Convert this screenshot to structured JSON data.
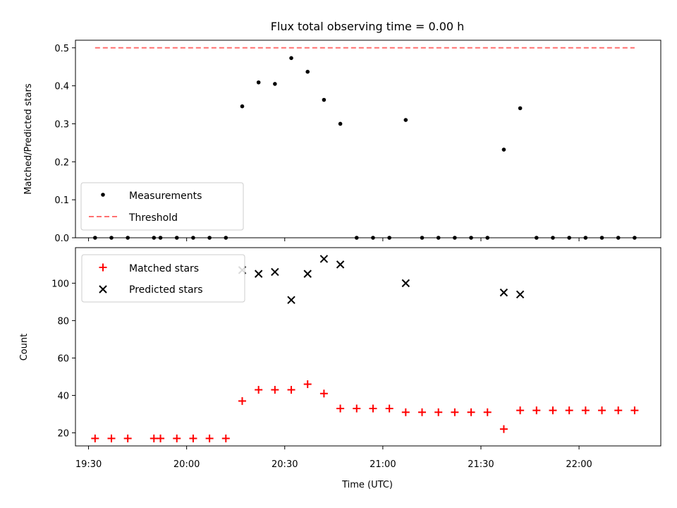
{
  "chart_data": [
    {
      "type": "scatter",
      "title": "Flux total observing time = 0.00 h",
      "xlabel": "",
      "ylabel": "Matched/Predicted stars",
      "xlim": [
        "19:26",
        "22:25"
      ],
      "ylim": [
        0,
        0.52
      ],
      "yticks": [
        0.0,
        0.1,
        0.2,
        0.3,
        0.4,
        0.5
      ],
      "ytick_labels": [
        "0.0",
        "0.1",
        "0.2",
        "0.3",
        "0.4",
        "0.5"
      ],
      "legend": {
        "position": "lower-left",
        "entries": [
          "Measurements",
          "Threshold"
        ]
      },
      "series": [
        {
          "name": "Measurements",
          "marker": "dot",
          "color": "#000000",
          "x": [
            "19:32",
            "19:37",
            "19:42",
            "19:50",
            "19:52",
            "19:57",
            "20:02",
            "20:07",
            "20:12",
            "20:17",
            "20:22",
            "20:27",
            "20:32",
            "20:37",
            "20:42",
            "20:47",
            "20:52",
            "20:57",
            "21:02",
            "21:07",
            "21:12",
            "21:17",
            "21:22",
            "21:27",
            "21:32",
            "21:37",
            "21:42",
            "21:47",
            "21:52",
            "21:57",
            "22:02",
            "22:07",
            "22:12",
            "22:17"
          ],
          "y": [
            0,
            0,
            0,
            0,
            0,
            0,
            0,
            0,
            0,
            0.346,
            0.409,
            0.405,
            0.473,
            0.437,
            0.363,
            0.3,
            0,
            0,
            0,
            0.31,
            0,
            0,
            0,
            0,
            0,
            0.232,
            0.341,
            0,
            0,
            0,
            0,
            0,
            0,
            0
          ]
        },
        {
          "name": "Threshold",
          "style": "dashed-line",
          "color": "#ff7070",
          "x": [
            "19:32",
            "22:17"
          ],
          "y": [
            0.5,
            0.5
          ]
        }
      ]
    },
    {
      "type": "scatter",
      "title": "",
      "xlabel": "Time (UTC)",
      "ylabel": "Count",
      "xlim": [
        "19:26",
        "22:25"
      ],
      "ylim": [
        13,
        119
      ],
      "yticks": [
        20,
        40,
        60,
        80,
        100
      ],
      "ytick_labels": [
        "20",
        "40",
        "60",
        "80",
        "100"
      ],
      "xticks": [
        "19:30",
        "20:00",
        "20:30",
        "21:00",
        "21:30",
        "22:00"
      ],
      "xtick_labels": [
        "19:30",
        "20:00",
        "20:30",
        "21:00",
        "21:30",
        "22:00"
      ],
      "legend": {
        "position": "upper-left",
        "entries": [
          "Matched stars",
          "Predicted stars"
        ]
      },
      "series": [
        {
          "name": "Matched stars",
          "marker": "plus",
          "color": "#ff0000",
          "x": [
            "19:32",
            "19:37",
            "19:42",
            "19:50",
            "19:52",
            "19:57",
            "20:02",
            "20:07",
            "20:12",
            "20:17",
            "20:22",
            "20:27",
            "20:32",
            "20:37",
            "20:42",
            "20:47",
            "20:52",
            "20:57",
            "21:02",
            "21:07",
            "21:12",
            "21:17",
            "21:22",
            "21:27",
            "21:32",
            "21:37",
            "21:42",
            "21:47",
            "21:52",
            "21:57",
            "22:02",
            "22:07",
            "22:12",
            "22:17"
          ],
          "y": [
            17,
            17,
            17,
            17,
            17,
            17,
            17,
            17,
            17,
            37,
            43,
            43,
            43,
            46,
            41,
            33,
            33,
            33,
            33,
            31,
            31,
            31,
            31,
            31,
            31,
            22,
            32,
            32,
            32,
            32,
            32,
            32,
            32,
            32
          ]
        },
        {
          "name": "Predicted stars",
          "marker": "x",
          "color": "#000000",
          "x": [
            "20:17",
            "20:22",
            "20:27",
            "20:32",
            "20:37",
            "20:42",
            "20:47",
            "21:07",
            "21:37",
            "21:42"
          ],
          "y": [
            107,
            105,
            106,
            91,
            105,
            113,
            110,
            100,
            95,
            94
          ]
        }
      ]
    }
  ]
}
